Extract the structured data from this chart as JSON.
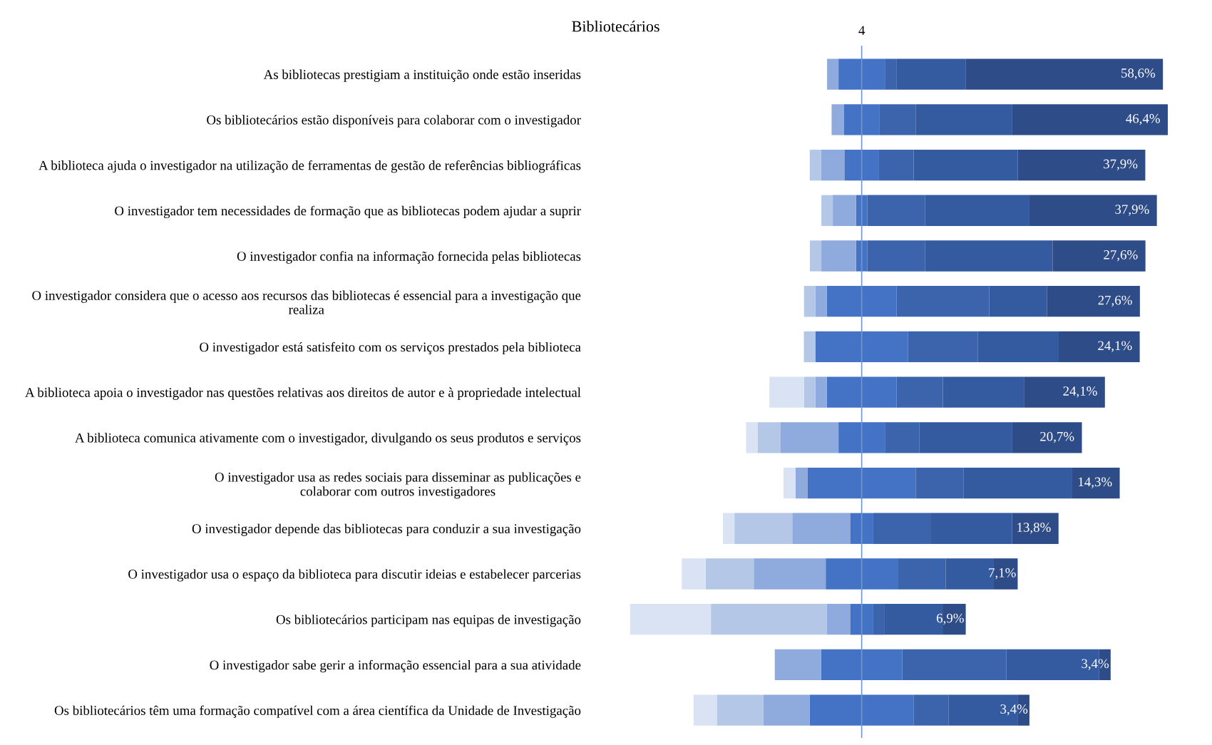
{
  "chart_data": {
    "type": "bar",
    "title": "Bibliotecários",
    "orientation": "horizontal",
    "stacked": true,
    "tick_labels": "y",
    "categories": [
      "As bibliotecas prestigiam a instituição onde estão inseridas",
      "Os bibliotecários estão disponíveis para colaborar com o investigador",
      "A biblioteca ajuda o investigador na utilização de ferramentas de gestão de referências bibliográficas",
      "O investigador tem necessidades de formação que as bibliotecas podem ajudar a suprir",
      "O investigador confia na informação fornecida pelas bibliotecas",
      "O investigador considera que o acesso aos recursos das bibliotecas é essencial para a investigação que\nrealiza",
      "O investigador está satisfeito com os serviços prestados pela biblioteca",
      "A biblioteca apoia o investigador nas questões relativas aos direitos de autor e à propriedade intelectual",
      "A biblioteca comunica ativamente com o investigador, divulgando os seus produtos e serviços",
      "O investigador usa as redes sociais para disseminar as publicações e\ncolaborar com outros investigadores",
      "O investigador depende das bibliotecas para conduzir a sua investigação",
      "O investigador usa o espaço da biblioteca para discutir ideias e estabelecer parcerias",
      "Os bibliotecários participam nas equipas de investigação",
      "O investigador sabe gerir a informação essencial para a sua atividade",
      "Os bibliotecários têm uma formação compatível com a área científica da Unidade de Investigação"
    ],
    "series": [
      {
        "color": "#4472c4",
        "values": [
          -6.9,
          -5.35,
          -5.15,
          -1.7,
          -1.7,
          -10.35,
          -13.8,
          -10.35,
          -6.9,
          -16.05,
          -3.45,
          -10.7,
          -3.45,
          -12.05,
          -15.5
        ]
      },
      {
        "color": "#8faadc",
        "values": [
          -3.4,
          -3.6,
          -6.9,
          -6.9,
          -10.3,
          -3.4,
          0,
          -3.4,
          -17.2,
          -3.6,
          -17.2,
          -21.4,
          -6.9,
          -13.8,
          -13.8
        ]
      },
      {
        "color": "#b4c7e7",
        "values": [
          0,
          0,
          -3.4,
          -3.4,
          -3.4,
          -3.4,
          -3.4,
          -3.4,
          -6.9,
          0,
          -17.2,
          -14.3,
          -34.5,
          0,
          -13.8
        ]
      },
      {
        "color": "#dae3f3",
        "values": [
          0,
          0,
          0,
          0,
          0,
          0,
          0,
          -10.3,
          -3.4,
          -3.6,
          -3.4,
          -7.1,
          -24.1,
          0,
          -6.9
        ]
      },
      {
        "color": "#4472c4",
        "values": [
          6.9,
          5.35,
          5.15,
          1.7,
          1.7,
          10.35,
          13.8,
          10.35,
          6.9,
          16.05,
          3.45,
          10.7,
          3.45,
          12.05,
          15.5
        ]
      },
      {
        "color": "#3b64ad",
        "values": [
          3.4,
          10.7,
          10.3,
          17.2,
          17.2,
          27.6,
          20.7,
          13.8,
          10.3,
          14.3,
          17.2,
          14.3,
          3.4,
          31.0,
          10.3
        ]
      },
      {
        "color": "#345a9f",
        "values": [
          20.7,
          28.6,
          31.0,
          31.0,
          37.9,
          17.2,
          24.1,
          24.1,
          27.6,
          32.1,
          24.1,
          14.3,
          17.2,
          27.6,
          20.7
        ]
      },
      {
        "color": "#2e4c87",
        "values": [
          58.6,
          46.4,
          37.9,
          37.9,
          27.6,
          27.6,
          24.1,
          24.1,
          20.7,
          14.3,
          13.8,
          7.1,
          6.9,
          3.4,
          3.4
        ],
        "value_labels": [
          "58,6%",
          "46,4%",
          "37,9%",
          "37,9%",
          "27,6%",
          "27,6%",
          "24,1%",
          "24,1%",
          "20,7%",
          "14,3%",
          "13,8%",
          "7,1%",
          "6,9%",
          "3,4%",
          "3,4%"
        ]
      }
    ],
    "xlim": [
      -68.95,
      91.05
    ],
    "ref_lines": [
      {
        "axis": "x",
        "value": 0,
        "color": "#7096d6"
      }
    ],
    "annotations": [
      "4"
    ]
  }
}
